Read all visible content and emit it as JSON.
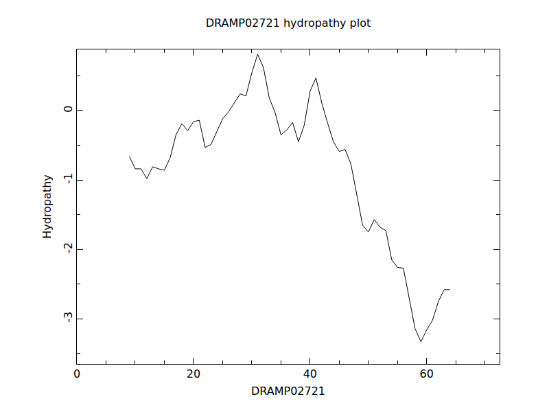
{
  "chart_data": {
    "type": "line",
    "title": "DRAMP02721 hydropathy plot",
    "x_label": "DRAMP02721",
    "y_label": "Hydropathy",
    "x": [
      9,
      10,
      11,
      12,
      13,
      14,
      15,
      16,
      17,
      18,
      19,
      20,
      21,
      22,
      23,
      24,
      25,
      26,
      27,
      28,
      29,
      30,
      31,
      32,
      33,
      34,
      35,
      36,
      37,
      38,
      39,
      40,
      41,
      42,
      43,
      44,
      45,
      46,
      47,
      48,
      49,
      50,
      51,
      52,
      53,
      54,
      55,
      56,
      57,
      58,
      59,
      60,
      61,
      62,
      63,
      64
    ],
    "values": [
      -0.66,
      -0.84,
      -0.84,
      -0.98,
      -0.81,
      -0.84,
      -0.86,
      -0.68,
      -0.35,
      -0.19,
      -0.29,
      -0.16,
      -0.14,
      -0.53,
      -0.49,
      -0.31,
      -0.12,
      -0.02,
      0.11,
      0.24,
      0.21,
      0.54,
      0.81,
      0.62,
      0.18,
      -0.03,
      -0.35,
      -0.28,
      -0.17,
      -0.45,
      -0.21,
      0.28,
      0.47,
      0.11,
      -0.18,
      -0.45,
      -0.59,
      -0.56,
      -0.77,
      -1.22,
      -1.65,
      -1.75,
      -1.57,
      -1.68,
      -1.73,
      -2.15,
      -2.26,
      -2.27,
      -2.7,
      -3.14,
      -3.33,
      -3.16,
      -3.02,
      -2.75,
      -2.58,
      -2.58
    ],
    "color": "#000000",
    "xlim": [
      0,
      72.5
    ],
    "ylim": [
      -3.65,
      0.88
    ],
    "xticks": [
      0,
      20,
      40,
      60
    ],
    "yticks": [
      -3,
      -2,
      -1,
      0
    ],
    "grid": false
  }
}
